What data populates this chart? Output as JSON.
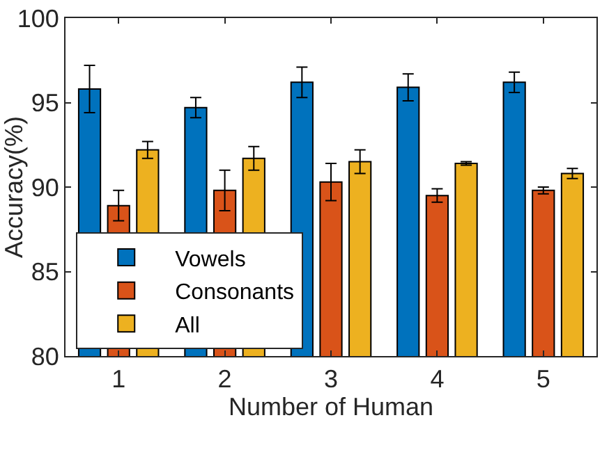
{
  "chart_data": {
    "type": "bar",
    "xlabel": "Number of Human",
    "ylabel": "Accuracy(%)",
    "categories": [
      "1",
      "2",
      "3",
      "4",
      "5"
    ],
    "series": [
      {
        "name": "Vowels",
        "color": "#0072bd",
        "values": [
          95.8,
          94.7,
          96.2,
          95.9,
          96.2
        ],
        "errors": [
          1.4,
          0.6,
          0.9,
          0.8,
          0.6
        ]
      },
      {
        "name": "Consonants",
        "color": "#d95319",
        "values": [
          88.9,
          89.8,
          90.3,
          89.5,
          89.8
        ],
        "errors": [
          0.9,
          1.2,
          1.1,
          0.4,
          0.2
        ]
      },
      {
        "name": "All",
        "color": "#edb120",
        "values": [
          92.2,
          91.7,
          91.5,
          91.4,
          90.8
        ],
        "errors": [
          0.5,
          0.7,
          0.7,
          0.1,
          0.3
        ]
      }
    ],
    "ylim": [
      80,
      100
    ],
    "yticks": [
      80,
      85,
      90,
      95,
      100
    ],
    "grid": false,
    "legend": "bottom left"
  }
}
